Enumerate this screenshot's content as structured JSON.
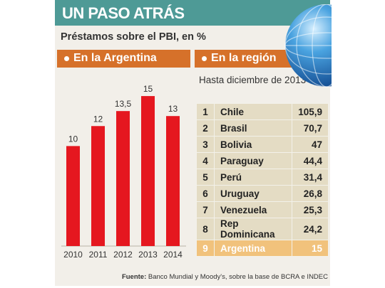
{
  "header": {
    "title": "UN PASO ATRÁS",
    "subtitle": "Préstamos sobre el PBI, en %"
  },
  "left_section": {
    "label": "En la Argentina"
  },
  "right_section": {
    "label": "En la región",
    "note": "Hasta diciembre de 2013"
  },
  "chart_data": {
    "type": "bar",
    "title": "En la Argentina",
    "categories": [
      "2010",
      "2011",
      "2012",
      "2013",
      "2014"
    ],
    "values": [
      10,
      12,
      13.5,
      15,
      13
    ],
    "value_labels": [
      "10",
      "12",
      "13,5",
      "15",
      "13"
    ],
    "ylim": [
      0,
      16.5
    ],
    "bar_color": "#e5171f",
    "grid": false
  },
  "region_table": {
    "rows": [
      {
        "rank": "1",
        "country": "Chile",
        "value": "105,9"
      },
      {
        "rank": "2",
        "country": "Brasil",
        "value": "70,7"
      },
      {
        "rank": "3",
        "country": "Bolivia",
        "value": "47"
      },
      {
        "rank": "4",
        "country": "Paraguay",
        "value": "44,4"
      },
      {
        "rank": "5",
        "country": "Perú",
        "value": "31,4"
      },
      {
        "rank": "6",
        "country": "Uruguay",
        "value": "26,8"
      },
      {
        "rank": "7",
        "country": "Venezuela",
        "value": "25,3"
      },
      {
        "rank": "8",
        "country": "Rep Dominicana",
        "value": "24,2"
      },
      {
        "rank": "9",
        "country": "Argentina",
        "value": "15"
      }
    ],
    "highlight_rank": "9",
    "row_color": "#e4dcc4",
    "highlight_color": "#f1c27c"
  },
  "footer": {
    "source_label": "Fuente:",
    "source_text": "Banco Mundial y Moody's, sobre la base de BCRA e INDEC"
  },
  "colors": {
    "header": "#4e9a96",
    "section": "#d6712a",
    "card": "#f2efe9"
  },
  "icons": {
    "globe": "globe-icon"
  }
}
